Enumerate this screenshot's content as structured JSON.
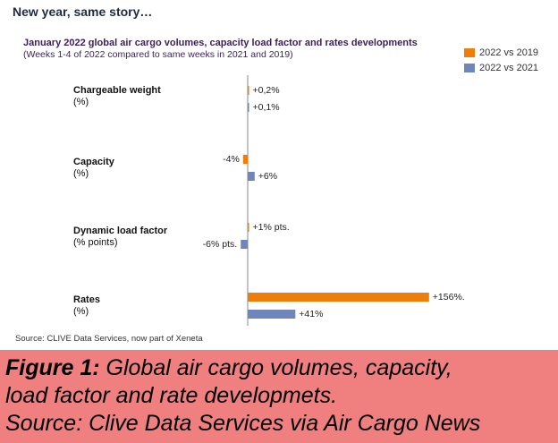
{
  "heading": "New year, same story…",
  "chart_data": {
    "type": "bar",
    "orientation": "horizontal",
    "title": "January 2022 global air cargo volumes, capacity load factor and rates developments",
    "subtitle": "(Weeks 1-4 of 2022 compared to same weeks in 2021 and 2019)",
    "categories": [
      {
        "name": "Chargeable weight",
        "unit": "(%)"
      },
      {
        "name": "Capacity",
        "unit": "(%)"
      },
      {
        "name": "Dynamic load factor",
        "unit": "(% points)"
      },
      {
        "name": "Rates",
        "unit": "(%)"
      }
    ],
    "series": [
      {
        "name": "2022 vs 2019",
        "color": "#f07c0a",
        "values": [
          0.2,
          -4,
          1,
          156
        ],
        "labels": [
          "+0,2%",
          "-4%",
          "+1% pts.",
          "+156%."
        ]
      },
      {
        "name": "2022 vs 2021",
        "color": "#6f86ba",
        "values": [
          0.1,
          6,
          -6,
          41
        ],
        "labels": [
          "+0,1%",
          "+6%",
          "-6% pts.",
          "+41%"
        ]
      }
    ],
    "legend": "top-right",
    "grid": false
  },
  "source": "Source: CLIVE Data Services, now part of Xeneta",
  "caption": {
    "label": "Figure 1:",
    "line1": " Global air cargo volumes, capacity,",
    "line2": "load factor and rate developmets.",
    "line3": "Source: Clive Data Services via Air Cargo News"
  }
}
